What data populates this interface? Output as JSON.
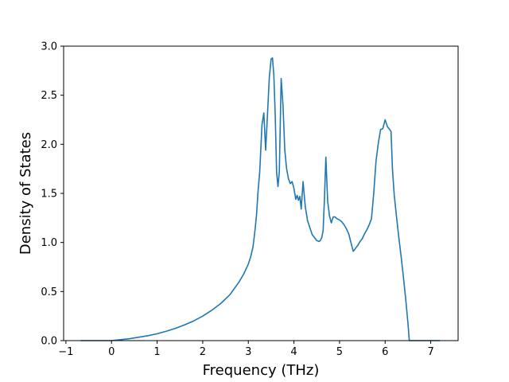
{
  "chart_data": {
    "type": "line",
    "title": "",
    "xlabel": "Frequency (THz)",
    "ylabel": "Density of States",
    "xlim": [
      -1.05,
      7.6
    ],
    "ylim": [
      0.0,
      3.0
    ],
    "x_ticks": [
      -1,
      0,
      1,
      2,
      3,
      4,
      5,
      6,
      7
    ],
    "x_tick_labels": [
      "−1",
      "0",
      "1",
      "2",
      "3",
      "4",
      "5",
      "6",
      "7"
    ],
    "y_ticks": [
      0.0,
      0.5,
      1.0,
      1.5,
      2.0,
      2.5,
      3.0
    ],
    "y_tick_labels": [
      "0.0",
      "0.5",
      "1.0",
      "1.5",
      "2.0",
      "2.5",
      "3.0"
    ],
    "grid": false,
    "legend": "none",
    "line_color": "#1f77b4",
    "series": [
      {
        "x": [
          -0.68,
          -0.3,
          0.0,
          0.2,
          0.4,
          0.6,
          0.8,
          1.0,
          1.2,
          1.4,
          1.6,
          1.8,
          2.0,
          2.2,
          2.4,
          2.6,
          2.8,
          2.9,
          3.0,
          3.05,
          3.1,
          3.12,
          3.15,
          3.18,
          3.21,
          3.25,
          3.3,
          3.34,
          3.38,
          3.42,
          3.46,
          3.5,
          3.53,
          3.56,
          3.59,
          3.62,
          3.65,
          3.68,
          3.72,
          3.76,
          3.8,
          3.84,
          3.88,
          3.92,
          3.96,
          4.0,
          4.04,
          4.07,
          4.1,
          4.13,
          4.16,
          4.2,
          4.25,
          4.3,
          4.35,
          4.4,
          4.45,
          4.5,
          4.55,
          4.58,
          4.61,
          4.64,
          4.67,
          4.7,
          4.74,
          4.78,
          4.82,
          4.86,
          4.9,
          4.95,
          5.0,
          5.05,
          5.1,
          5.15,
          5.2,
          5.25,
          5.3,
          5.35,
          5.4,
          5.45,
          5.5,
          5.55,
          5.6,
          5.65,
          5.7,
          5.75,
          5.8,
          5.85,
          5.9,
          5.95,
          6.0,
          6.05,
          6.1,
          6.13,
          6.16,
          6.2,
          6.25,
          6.3,
          6.35,
          6.4,
          6.45,
          6.5,
          6.53,
          6.56,
          6.58,
          6.6,
          7.2
        ],
        "y": [
          0.0,
          0.0,
          0.0,
          0.01,
          0.02,
          0.035,
          0.05,
          0.07,
          0.095,
          0.125,
          0.16,
          0.2,
          0.25,
          0.31,
          0.38,
          0.47,
          0.6,
          0.68,
          0.78,
          0.85,
          0.95,
          1.02,
          1.14,
          1.28,
          1.5,
          1.72,
          2.2,
          2.32,
          1.94,
          2.3,
          2.68,
          2.87,
          2.88,
          2.7,
          2.3,
          1.72,
          1.57,
          1.72,
          2.67,
          2.4,
          1.94,
          1.75,
          1.65,
          1.6,
          1.62,
          1.55,
          1.44,
          1.48,
          1.43,
          1.47,
          1.34,
          1.62,
          1.36,
          1.22,
          1.15,
          1.08,
          1.05,
          1.02,
          1.01,
          1.02,
          1.05,
          1.12,
          1.45,
          1.87,
          1.42,
          1.27,
          1.2,
          1.26,
          1.26,
          1.24,
          1.23,
          1.21,
          1.18,
          1.14,
          1.09,
          1.0,
          0.91,
          0.94,
          0.97,
          1.01,
          1.04,
          1.09,
          1.13,
          1.18,
          1.24,
          1.5,
          1.83,
          2.01,
          2.15,
          2.16,
          2.25,
          2.18,
          2.15,
          2.13,
          1.75,
          1.48,
          1.26,
          1.05,
          0.86,
          0.65,
          0.43,
          0.18,
          0.0,
          0.0,
          0.0,
          0.0,
          0.0
        ]
      }
    ]
  }
}
